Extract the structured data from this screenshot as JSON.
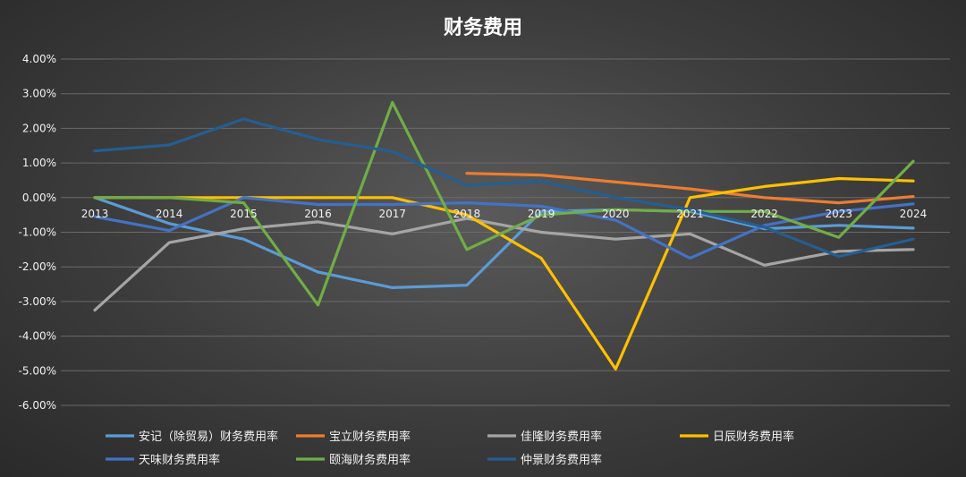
{
  "chart_data": {
    "type": "line",
    "title": "财务费用",
    "x": [
      "2013",
      "2014",
      "2015",
      "2016",
      "2017",
      "2018",
      "2019",
      "2020",
      "2021",
      "2022",
      "2023",
      "2024"
    ],
    "ylim": [
      -0.06,
      0.04
    ],
    "yticks": [
      "4.00%",
      "3.00%",
      "2.00%",
      "1.00%",
      "0.00%",
      "-1.00%",
      "-2.00%",
      "-3.00%",
      "-4.00%",
      "-5.00%",
      "-6.00%"
    ],
    "grid": true,
    "legend_position": "bottom",
    "series": [
      {
        "name": "安记（除贸易）财务费用率",
        "color": "#5b9bd5",
        "values": [
          0.0,
          -0.0075,
          -0.012,
          -0.0215,
          -0.026,
          -0.0253,
          -0.004,
          -0.0035,
          -0.004,
          -0.009,
          -0.008,
          -0.0088
        ]
      },
      {
        "name": "宝立财务费用率",
        "color": "#ed7d31",
        "values": [
          null,
          null,
          null,
          null,
          null,
          0.007,
          0.0065,
          0.0045,
          0.0025,
          0.0,
          -0.0015,
          0.0003
        ]
      },
      {
        "name": "佳隆财务费用率",
        "color": "#a5a5a5",
        "values": [
          -0.0325,
          -0.013,
          -0.009,
          -0.007,
          -0.0105,
          -0.006,
          -0.01,
          -0.012,
          -0.0105,
          -0.0195,
          -0.0155,
          -0.015
        ]
      },
      {
        "name": "日辰财务费用率",
        "color": "#ffc000",
        "values": [
          0.0,
          0.0,
          0.0,
          0.0,
          0.0,
          -0.005,
          -0.0175,
          -0.0495,
          0.0,
          0.0032,
          0.0055,
          0.0048
        ]
      },
      {
        "name": "天味财务费用率",
        "color": "#4472c4",
        "values": [
          -0.0055,
          -0.0095,
          0.0,
          -0.002,
          -0.002,
          -0.0015,
          -0.0025,
          -0.0065,
          -0.0175,
          -0.008,
          -0.004,
          -0.0018
        ]
      },
      {
        "name": "颐海财务费用率",
        "color": "#70ad47",
        "values": [
          0.0,
          0.0,
          -0.0015,
          -0.031,
          0.0275,
          -0.015,
          -0.005,
          -0.0035,
          -0.004,
          -0.004,
          -0.0115,
          0.0105
        ]
      },
      {
        "name": "仲景财务费用率",
        "color": "#255e91",
        "values": [
          0.0135,
          0.0152,
          0.0227,
          0.0168,
          0.0133,
          0.0035,
          0.0047,
          0.0,
          -0.0035,
          -0.0085,
          -0.017,
          -0.012
        ]
      }
    ]
  }
}
